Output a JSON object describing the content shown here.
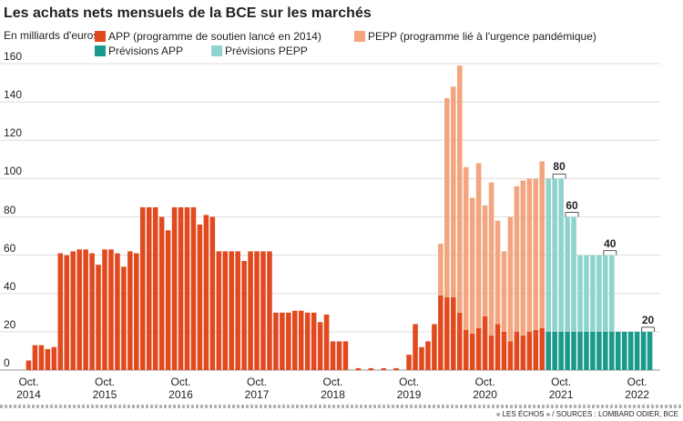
{
  "chart_data": {
    "type": "stacked_bar",
    "title": "Les achats nets mensuels de la BCE sur les marchés",
    "subtitle": "En milliards d'euros",
    "source": "« LES ÉCHOS » / SOURCES : LOMBARD ODIER, BCE",
    "categories": [
      "Oct. 2014",
      null,
      null,
      null,
      null,
      null,
      null,
      null,
      null,
      null,
      null,
      null,
      "Oct. 2015",
      null,
      null,
      null,
      null,
      null,
      null,
      null,
      null,
      null,
      null,
      null,
      "Oct. 2016",
      null,
      null,
      null,
      null,
      null,
      null,
      null,
      null,
      null,
      null,
      null,
      "Oct. 2017",
      null,
      null,
      null,
      null,
      null,
      null,
      null,
      null,
      null,
      null,
      null,
      "Oct. 2018",
      null,
      null,
      null,
      null,
      null,
      null,
      null,
      null,
      null,
      null,
      null,
      "Oct. 2019",
      null,
      null,
      null,
      null,
      null,
      null,
      null,
      null,
      null,
      null,
      null,
      "Oct. 2020",
      null,
      null,
      null,
      null,
      null,
      null,
      null,
      null,
      null,
      null,
      null,
      "Oct. 2021",
      null,
      null,
      null,
      null,
      null,
      null,
      null,
      null,
      null,
      null,
      null,
      "Oct. 2022",
      null,
      null
    ],
    "series": [
      {
        "name": "APP (programme de soutien lancé en 2014)",
        "color": "#e2491e",
        "values": [
          5,
          13,
          13,
          11,
          12,
          61,
          60,
          62,
          63,
          63,
          61,
          55,
          63,
          63,
          61,
          54,
          62,
          61,
          85,
          85,
          85,
          80,
          73,
          85,
          85,
          85,
          85,
          76,
          81,
          80,
          62,
          62,
          62,
          62,
          57,
          62,
          62,
          62,
          62,
          30,
          30,
          30,
          31,
          31,
          30,
          30,
          25,
          29,
          15,
          15,
          15,
          0,
          1,
          0,
          1,
          0,
          1,
          0,
          1,
          0,
          8,
          24,
          12,
          15,
          24,
          39,
          38,
          38,
          30,
          21,
          19,
          22,
          28,
          18,
          24,
          20,
          15,
          20,
          18,
          20,
          21,
          22,
          null,
          null,
          null,
          null,
          null,
          null,
          null,
          null,
          null,
          null,
          null,
          null,
          null,
          null,
          null,
          null,
          null
        ]
      },
      {
        "name": "PEPP (programme lié à l'urgence pandémique)",
        "color": "#f2a57e",
        "values": [
          null,
          null,
          null,
          null,
          null,
          null,
          null,
          null,
          null,
          null,
          null,
          null,
          null,
          null,
          null,
          null,
          null,
          null,
          null,
          null,
          null,
          null,
          null,
          null,
          null,
          null,
          null,
          null,
          null,
          null,
          null,
          null,
          null,
          null,
          null,
          null,
          null,
          null,
          null,
          null,
          null,
          null,
          null,
          null,
          null,
          null,
          null,
          null,
          null,
          null,
          null,
          null,
          null,
          null,
          null,
          null,
          null,
          null,
          null,
          null,
          null,
          null,
          null,
          null,
          null,
          27,
          104,
          110,
          129,
          85,
          71,
          86,
          58,
          80,
          54,
          42,
          65,
          76,
          81,
          80,
          79,
          87,
          null,
          null,
          null,
          null,
          null,
          null,
          null,
          null,
          null,
          null,
          null,
          null,
          null,
          null,
          null,
          null,
          null
        ]
      },
      {
        "name": "Prévisions APP",
        "color": "#1a9a8a",
        "values": [
          null,
          null,
          null,
          null,
          null,
          null,
          null,
          null,
          null,
          null,
          null,
          null,
          null,
          null,
          null,
          null,
          null,
          null,
          null,
          null,
          null,
          null,
          null,
          null,
          null,
          null,
          null,
          null,
          null,
          null,
          null,
          null,
          null,
          null,
          null,
          null,
          null,
          null,
          null,
          null,
          null,
          null,
          null,
          null,
          null,
          null,
          null,
          null,
          null,
          null,
          null,
          null,
          null,
          null,
          null,
          null,
          null,
          null,
          null,
          null,
          null,
          null,
          null,
          null,
          null,
          null,
          null,
          null,
          null,
          null,
          null,
          null,
          null,
          null,
          null,
          null,
          null,
          null,
          null,
          null,
          null,
          null,
          20,
          20,
          20,
          20,
          20,
          20,
          20,
          20,
          20,
          20,
          20,
          20,
          20,
          20,
          20,
          20,
          20
        ]
      },
      {
        "name": "Prévisions PEPP",
        "color": "#8fd3cf",
        "values": [
          null,
          null,
          null,
          null,
          null,
          null,
          null,
          null,
          null,
          null,
          null,
          null,
          null,
          null,
          null,
          null,
          null,
          null,
          null,
          null,
          null,
          null,
          null,
          null,
          null,
          null,
          null,
          null,
          null,
          null,
          null,
          null,
          null,
          null,
          null,
          null,
          null,
          null,
          null,
          null,
          null,
          null,
          null,
          null,
          null,
          null,
          null,
          null,
          null,
          null,
          null,
          null,
          null,
          null,
          null,
          null,
          null,
          null,
          null,
          null,
          null,
          null,
          null,
          null,
          null,
          null,
          null,
          null,
          null,
          null,
          null,
          null,
          null,
          null,
          null,
          null,
          null,
          null,
          null,
          null,
          null,
          null,
          80,
          80,
          80,
          60,
          60,
          40,
          40,
          40,
          40,
          40,
          40,
          null,
          null,
          null,
          null,
          null,
          null
        ]
      }
    ],
    "annotations": [
      80,
      60,
      40,
      20
    ],
    "ylim": [
      0,
      160
    ],
    "yticks": [
      0,
      20,
      40,
      60,
      80,
      100,
      120,
      140,
      160
    ],
    "grid": true
  }
}
